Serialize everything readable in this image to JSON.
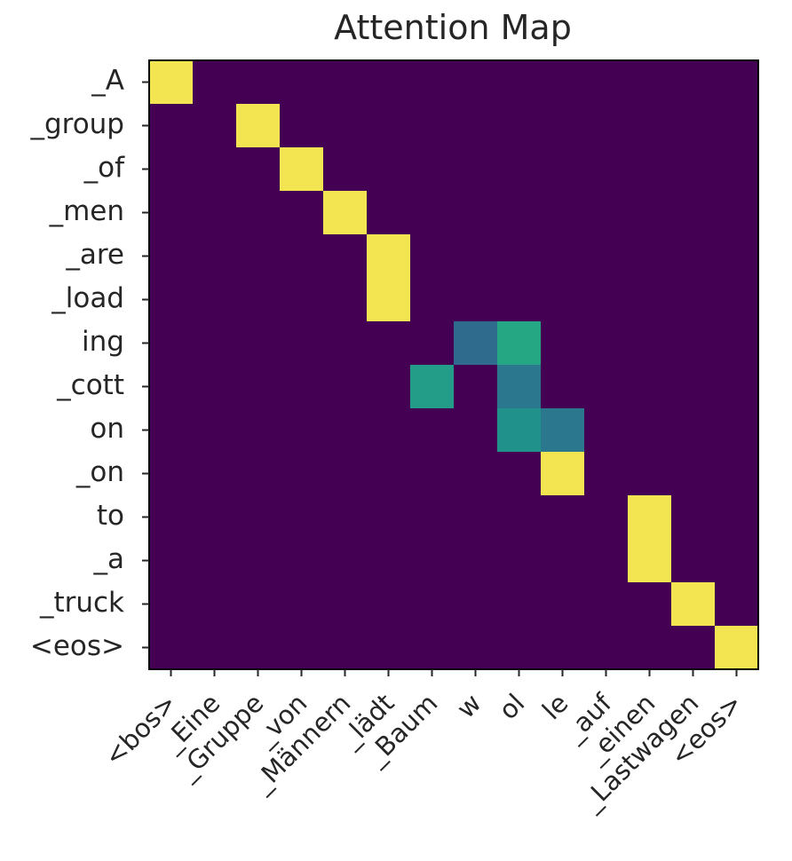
{
  "chart_data": {
    "type": "heatmap",
    "title": "Attention Map",
    "xlabel": "",
    "ylabel": "",
    "colormap": "viridis",
    "value_range": [
      0,
      1
    ],
    "colors": {
      "low": "#440154",
      "high": "#f3e451",
      "background": "#ffffff",
      "frame": "#000000"
    },
    "x_labels": [
      "<bos>",
      "_Eine",
      "_Gruppe",
      "_von",
      "_Männern",
      "_lädt",
      "_Baum",
      "w",
      "ol",
      "le",
      "_auf",
      "_einen",
      "_Lastwagen",
      "<eos>"
    ],
    "y_labels": [
      "_A",
      "_group",
      "_of",
      "_men",
      "_are",
      "_load",
      "ing",
      "_cott",
      "on",
      "_on",
      "to",
      "_a",
      "_truck",
      "<eos>"
    ],
    "values": [
      [
        1,
        0,
        0,
        0,
        0,
        0,
        0,
        0,
        0,
        0,
        0,
        0,
        0,
        0
      ],
      [
        0,
        0,
        1,
        0,
        0,
        0,
        0,
        0,
        0,
        0,
        0,
        0,
        0,
        0
      ],
      [
        0,
        0,
        0,
        1,
        0,
        0,
        0,
        0,
        0,
        0,
        0,
        0,
        0,
        0
      ],
      [
        0,
        0,
        0,
        0,
        1,
        0,
        0,
        0,
        0,
        0,
        0,
        0,
        0,
        0
      ],
      [
        0,
        0,
        0,
        0,
        0,
        1,
        0,
        0,
        0,
        0,
        0,
        0,
        0,
        0
      ],
      [
        0,
        0,
        0,
        0,
        0,
        1,
        0,
        0,
        0,
        0,
        0,
        0,
        0,
        0
      ],
      [
        0,
        0,
        0,
        0,
        0,
        0,
        0,
        0.35,
        0.6,
        0,
        0,
        0,
        0,
        0
      ],
      [
        0,
        0,
        0,
        0,
        0,
        0,
        0.55,
        0,
        0.4,
        0,
        0,
        0,
        0,
        0
      ],
      [
        0,
        0,
        0,
        0,
        0,
        0,
        0,
        0,
        0.5,
        0.4,
        0,
        0,
        0,
        0
      ],
      [
        0,
        0,
        0,
        0,
        0,
        0,
        0,
        0,
        0,
        1,
        0,
        0,
        0,
        0
      ],
      [
        0,
        0,
        0,
        0,
        0,
        0,
        0,
        0,
        0,
        0,
        0,
        1,
        0,
        0
      ],
      [
        0,
        0,
        0,
        0,
        0,
        0,
        0,
        0,
        0,
        0,
        0,
        1,
        0,
        0
      ],
      [
        0,
        0,
        0,
        0,
        0,
        0,
        0,
        0,
        0,
        0,
        0,
        0,
        1,
        0
      ],
      [
        0,
        0,
        0,
        0,
        0,
        0,
        0,
        0,
        0,
        0,
        0,
        0,
        0,
        1
      ]
    ]
  }
}
